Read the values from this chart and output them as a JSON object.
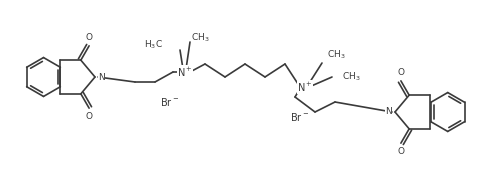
{
  "background_color": "#ffffff",
  "line_color": "#3a3a3a",
  "line_width": 1.2,
  "font_size": 6.5,
  "figsize": [
    4.9,
    1.92
  ],
  "dpi": 100,
  "xlim": [
    0,
    49
  ],
  "ylim": [
    0,
    19.2
  ]
}
